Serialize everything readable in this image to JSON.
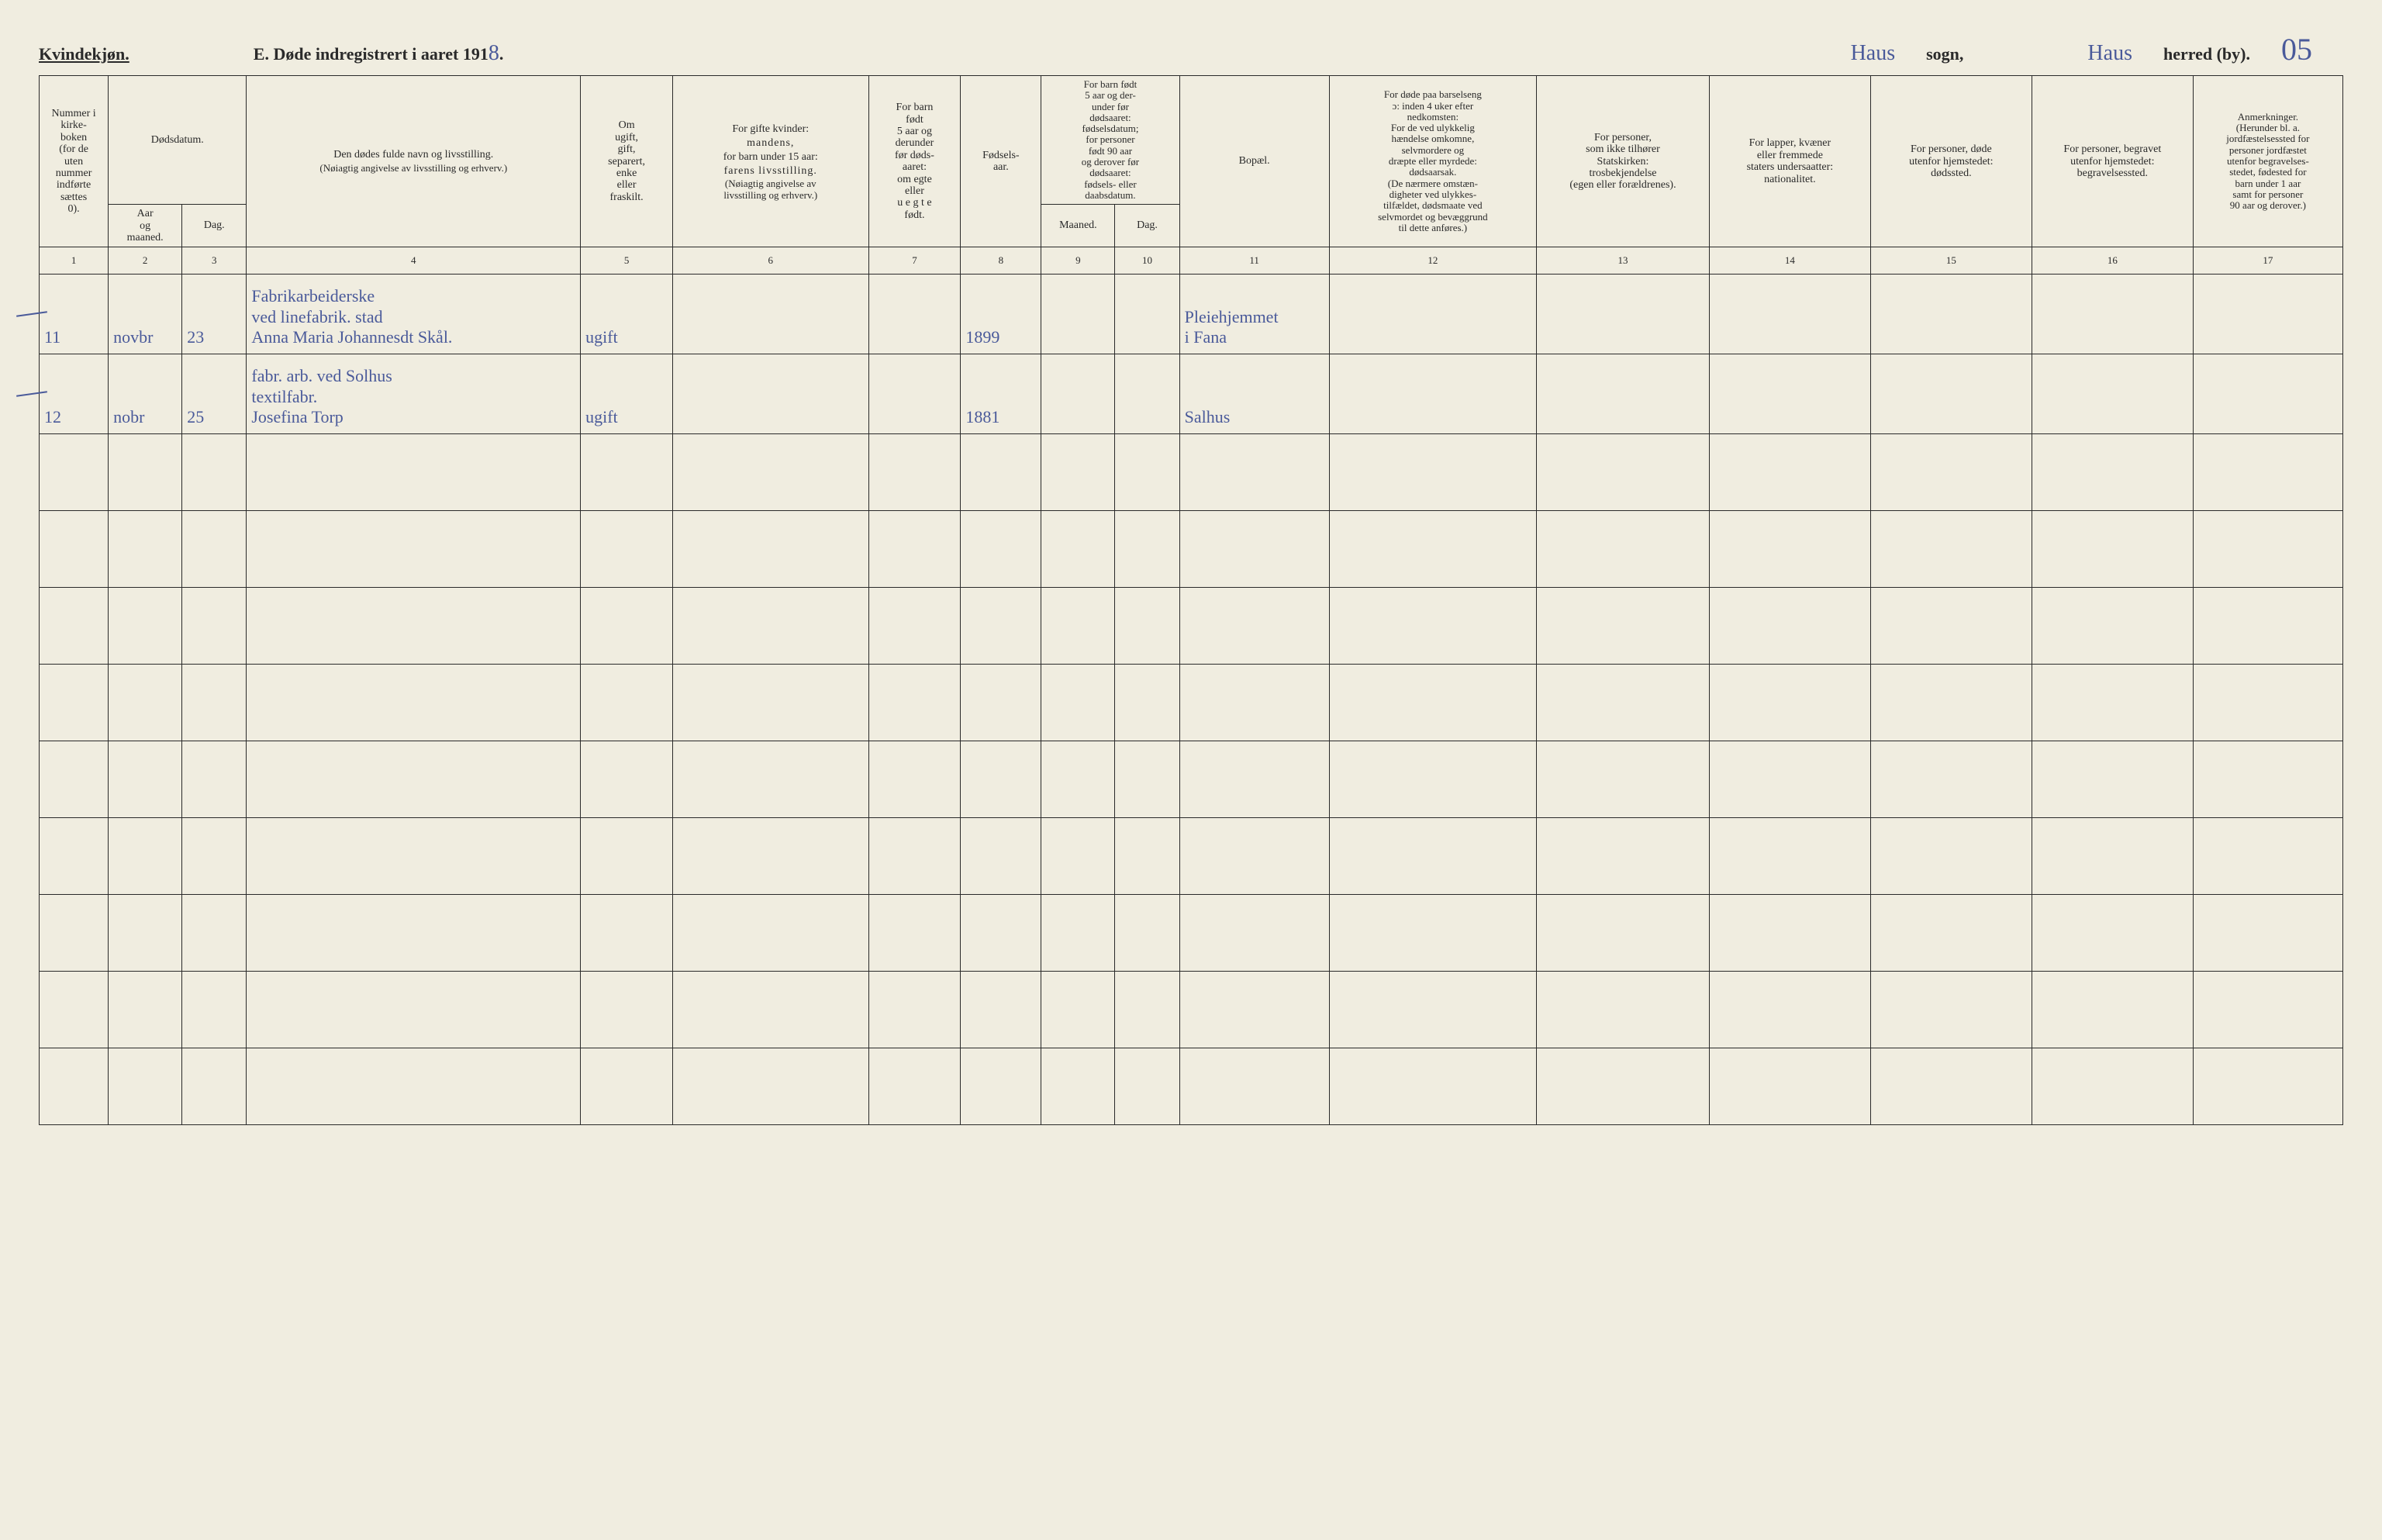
{
  "header": {
    "gender_label": "Kvindekjøn.",
    "title_prefix": "E.  Døde indregistrert i aaret 191",
    "year_digit": "8",
    "title_suffix": ".",
    "sogn_value": "Haus",
    "sogn_label": "sogn,",
    "herred_value": "Haus",
    "herred_label": "herred (by).",
    "page_number": "05"
  },
  "columns": {
    "c1": "Nummer i kirke-\nboken\n(for de\nuten\nnummer\nindførte\nsættes\n0).",
    "c2_top": "Dødsdatum.",
    "c2a": "Aar\nog\nmaaned.",
    "c2b": "Dag.",
    "c4_top": "Den dødes fulde navn og livsstilling.",
    "c4_sub": "(Nøiagtig angivelse av livsstilling og erhverv.)",
    "c5": "Om\nugift,\ngift,\nseparert,\nenke\neller\nfraskilt.",
    "c6_top": "For gifte kvinder:",
    "c6_mid": "mandens,",
    "c6_mid2": "for barn under 15 aar:",
    "c6_mid3": "farens livsstilling.",
    "c6_sub": "(Nøiagtig angivelse av\nlivsstilling og erhverv.)",
    "c7": "For barn\nfødt\n5 aar og\nderunder\nfør døds-\naaret:\nom egte\neller\nu e g t e\nfødt.",
    "c8": "Fødsels-\naar.",
    "c9_top": "For barn født\n5 aar og der-\nunder før\ndødsaaret:\nfødselsdatum;\nfor personer\nfødt 90 aar\nog derover før\ndødsaaret:\nfødsels- eller\ndaabsdatum.",
    "c9a": "Maaned.",
    "c9b": "Dag.",
    "c11": "Bopæl.",
    "c12": "For døde paa barselseng\nɔ: inden 4 uker efter\nnedkomsten:\nFor de ved ulykkelig\nhændelse omkomne,\nselvmordere og\ndræpte eller myrdede:\ndødsaarsak.\n(De nærmere omstæn-\ndigheter ved ulykkes-\ntilfældet, dødsmaate ved\nselvmordet og bevæggrund\ntil dette anføres.)",
    "c13": "For personer,\nsom ikke tilhører\nStatskirken:\ntrosbekjendelse\n(egen eller forældrenes).",
    "c14": "For lapper, kvæner\neller fremmede\nstaters undersaatter:\nnationalitet.",
    "c15": "For personer, døde\nutenfor hjemstedet:\ndødssted.",
    "c16": "For personer, begravet\nutenfor hjemstedet:\nbegravelsessted.",
    "c17": "Anmerkninger.\n(Herunder bl. a.\njordfæstelsessted for\npersoner jordfæstet\nutenfor begravelses-\nstedet, fødested for\nbarn under 1 aar\nsamt for personer\n90 aar og derover.)"
  },
  "colnums": [
    "1",
    "2",
    "3",
    "4",
    "5",
    "6",
    "7",
    "8",
    "9",
    "10",
    "11",
    "12",
    "13",
    "14",
    "15",
    "16",
    "17"
  ],
  "rows": [
    {
      "num": "11",
      "maaned": "novbr",
      "dag": "23",
      "navn_line1": "Fabrikarbeiderske",
      "navn_line2": "ved linefabrik.        stad",
      "navn_line3": "Anna Maria Johannesdt Skål.",
      "status": "ugift",
      "fodselsaar": "1899",
      "bopael_line1": "Pleiehjemmet",
      "bopael_line2": "i Fana"
    },
    {
      "num": "12",
      "maaned": "nobr",
      "dag": "25",
      "navn_line1": "fabr. arb. ved Solhus",
      "navn_line2": "textilfabr.",
      "navn_line3": "Josefina Torp",
      "status": "ugift",
      "fodselsaar": "1881",
      "bopael_line1": "",
      "bopael_line2": "Salhus"
    }
  ],
  "style": {
    "background_color": "#f0ede0",
    "line_color": "#2a2a2a",
    "ink_color": "#4a5a9a",
    "header_fontsize": 22,
    "cell_fontsize": 14,
    "hand_fontsize": 22
  },
  "column_widths_pct": [
    3.0,
    3.2,
    2.8,
    14.5,
    4.0,
    8.5,
    4.0,
    3.5,
    3.2,
    2.8,
    6.5,
    9.0,
    7.5,
    7.0,
    7.0,
    7.0,
    6.5
  ]
}
